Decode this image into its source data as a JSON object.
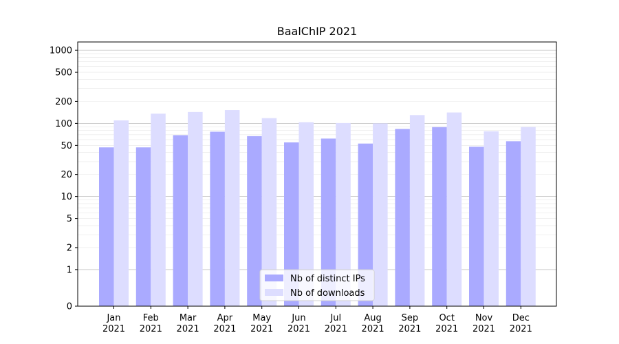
{
  "chart_data": {
    "type": "bar",
    "title": "BaalChIP 2021",
    "xlabel": "",
    "ylabel": "",
    "yscale": "symlog",
    "ylim": [
      0,
      1300
    ],
    "yticks": [
      0,
      1,
      2,
      5,
      10,
      20,
      50,
      100,
      200,
      500,
      1000
    ],
    "categories": [
      "Jan\n2021",
      "Feb\n2021",
      "Mar\n2021",
      "Apr\n2021",
      "May\n2021",
      "Jun\n2021",
      "Jul\n2021",
      "Aug\n2021",
      "Sep\n2021",
      "Oct\n2021",
      "Nov\n2021",
      "Dec\n2021"
    ],
    "series": [
      {
        "name": "Nb of distinct IPs",
        "color": "#aaaaff",
        "values": [
          47,
          47,
          69,
          77,
          67,
          55,
          62,
          53,
          84,
          89,
          48,
          57
        ]
      },
      {
        "name": "Nb of downloads",
        "color": "#ddddff",
        "values": [
          110,
          136,
          143,
          152,
          118,
          104,
          101,
          100,
          130,
          141,
          78,
          89
        ]
      }
    ],
    "grid": true,
    "legend_position": "bottom-center"
  }
}
